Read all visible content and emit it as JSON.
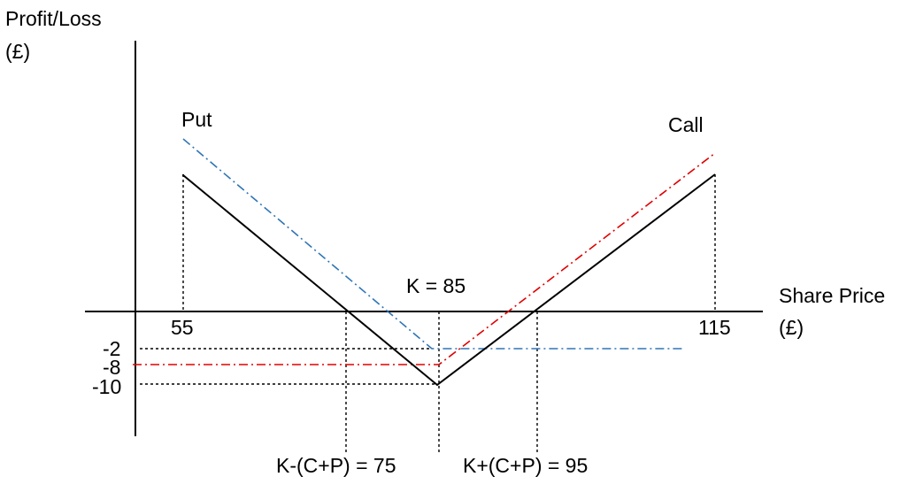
{
  "labels": {
    "y_axis_line1": "Profit/Loss",
    "y_axis_line2": "(£)",
    "x_axis_line1": "Share Price",
    "x_axis_line2": "(£)",
    "put": "Put",
    "call": "Call",
    "strike": "K = 85",
    "x_tick_left": "55",
    "x_tick_right": "115",
    "y_tick_1": "-2",
    "y_tick_2": "-8",
    "y_tick_3": "-10",
    "breakeven_low": "K-(C+P) = 75",
    "breakeven_high": "K+(C+P) = 95"
  },
  "colors": {
    "axes": "#000000",
    "straddle": "#000000",
    "put_line": "#2E75B6",
    "call_line": "#E00000",
    "guides": "#000000",
    "background": "#ffffff"
  },
  "lines": {
    "straddle": {
      "style": "solid",
      "description_values": {
        "strike": 85,
        "min": -10
      }
    },
    "put": {
      "style": "dash-dot",
      "min": -2
    },
    "call": {
      "style": "dash-dot",
      "min": -8
    }
  }
}
